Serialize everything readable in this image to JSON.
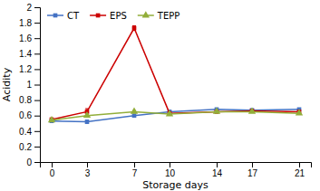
{
  "chart_data": {
    "type": "line",
    "xlabel": "Storage days",
    "ylabel": "Acidity",
    "x": [
      0,
      3,
      7,
      10,
      14,
      17,
      21
    ],
    "series": [
      {
        "name": "CT",
        "color": "#4472C4",
        "marker": "square",
        "values": [
          0.53,
          0.52,
          0.6,
          0.65,
          0.68,
          0.67,
          0.68
        ],
        "errors": [
          0.01,
          0.02,
          0.01,
          0.015,
          0.01,
          0.01,
          0.01
        ]
      },
      {
        "name": "EPS",
        "color": "#CC0000",
        "marker": "square",
        "values": [
          0.55,
          0.65,
          1.73,
          0.63,
          0.65,
          0.66,
          0.65
        ],
        "errors": [
          0.01,
          0.04,
          0.03,
          0.015,
          0.01,
          0.01,
          0.01
        ]
      },
      {
        "name": "TEPP",
        "color": "#92AE3A",
        "marker": "triangle",
        "values": [
          0.54,
          0.6,
          0.65,
          0.62,
          0.65,
          0.65,
          0.63
        ],
        "errors": [
          0.01,
          0.02,
          0.015,
          0.015,
          0.01,
          0.01,
          0.01
        ]
      }
    ],
    "xlim": [
      -1,
      22
    ],
    "xticks": [
      0,
      3,
      7,
      10,
      14,
      17,
      21
    ],
    "ylim": [
      0,
      2.0
    ],
    "yticks": [
      0,
      0.2,
      0.4,
      0.6,
      0.8,
      1,
      1.2,
      1.4,
      1.6,
      1.8,
      2
    ],
    "grid": false,
    "legend": "upper left"
  }
}
